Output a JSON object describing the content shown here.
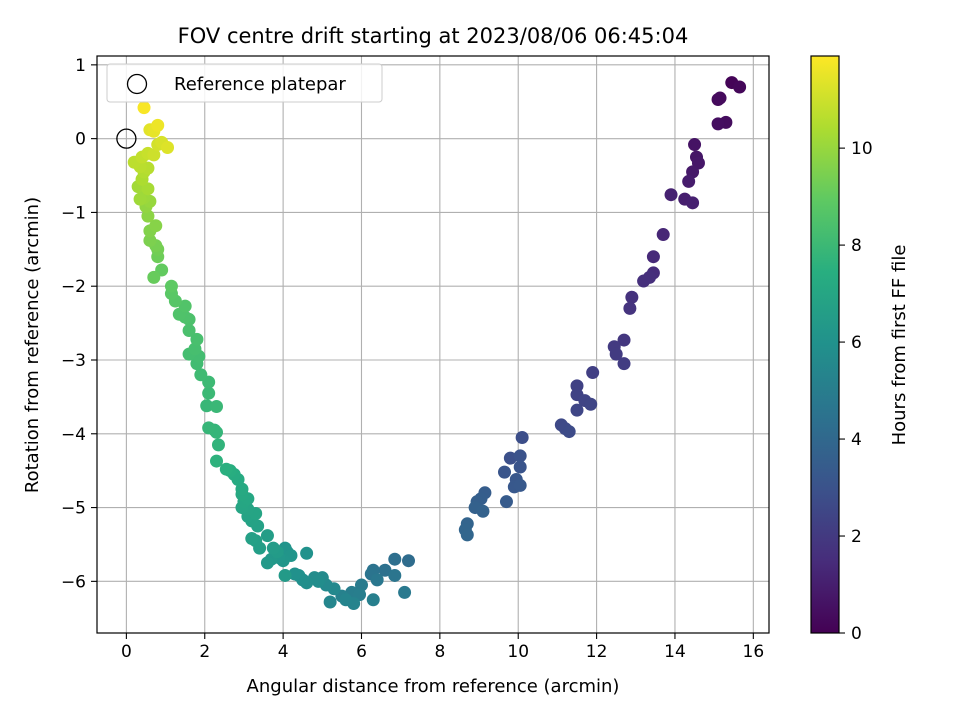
{
  "chart_data": {
    "type": "scatter",
    "title": "FOV centre drift starting at 2023/08/06 06:45:04",
    "xlabel": "Angular distance from reference (arcmin)",
    "ylabel": "Rotation from reference (arcmin)",
    "xlim": [
      -0.75,
      16.4
    ],
    "ylim": [
      -6.7,
      1.12
    ],
    "xticks": [
      0,
      2,
      4,
      6,
      8,
      10,
      12,
      14,
      16
    ],
    "yticks": [
      1,
      0,
      -1,
      -2,
      -3,
      -4,
      -5,
      -6
    ],
    "grid": true,
    "legend": {
      "location": "top-left",
      "entries": [
        "Reference platepar"
      ]
    },
    "reference_point": {
      "x": 0,
      "y": 0
    },
    "colorbar": {
      "label": "Hours from first FF file",
      "colormap": "viridis",
      "range": [
        0,
        11.9
      ],
      "ticks": [
        0,
        2,
        4,
        6,
        8,
        10
      ]
    },
    "points": [
      [
        15.45,
        0.76,
        0.1
      ],
      [
        15.65,
        0.7,
        0.2
      ],
      [
        15.1,
        0.53,
        0.3
      ],
      [
        15.15,
        0.55,
        0.35
      ],
      [
        15.3,
        0.22,
        0.4
      ],
      [
        15.1,
        0.2,
        0.45
      ],
      [
        14.5,
        -0.08,
        0.6
      ],
      [
        14.55,
        -0.25,
        0.7
      ],
      [
        14.6,
        -0.33,
        0.75
      ],
      [
        14.45,
        -0.45,
        0.8
      ],
      [
        14.35,
        -0.58,
        0.9
      ],
      [
        14.25,
        -0.82,
        1.0
      ],
      [
        14.45,
        -0.87,
        1.05
      ],
      [
        13.9,
        -0.76,
        1.1
      ],
      [
        13.7,
        -1.3,
        1.3
      ],
      [
        13.45,
        -1.6,
        1.4
      ],
      [
        13.45,
        -1.82,
        1.5
      ],
      [
        13.35,
        -1.88,
        1.55
      ],
      [
        13.2,
        -1.93,
        1.6
      ],
      [
        12.9,
        -2.15,
        1.7
      ],
      [
        12.85,
        -2.3,
        1.75
      ],
      [
        12.7,
        -2.73,
        1.9
      ],
      [
        12.45,
        -2.82,
        2.0
      ],
      [
        12.5,
        -2.92,
        2.05
      ],
      [
        12.7,
        -3.05,
        2.1
      ],
      [
        11.9,
        -3.17,
        2.2
      ],
      [
        11.5,
        -3.35,
        2.3
      ],
      [
        11.5,
        -3.47,
        2.35
      ],
      [
        11.7,
        -3.55,
        2.4
      ],
      [
        11.85,
        -3.6,
        2.45
      ],
      [
        11.5,
        -3.68,
        2.5
      ],
      [
        11.1,
        -3.88,
        2.6
      ],
      [
        11.2,
        -3.93,
        2.65
      ],
      [
        11.3,
        -3.97,
        2.7
      ],
      [
        10.1,
        -4.05,
        2.8
      ],
      [
        9.8,
        -4.33,
        2.9
      ],
      [
        10.05,
        -4.3,
        3.0
      ],
      [
        10.05,
        -4.45,
        3.05
      ],
      [
        9.65,
        -4.52,
        3.1
      ],
      [
        9.95,
        -4.62,
        3.2
      ],
      [
        9.9,
        -4.72,
        3.25
      ],
      [
        10.05,
        -4.7,
        3.3
      ],
      [
        9.7,
        -4.92,
        3.4
      ],
      [
        9.15,
        -4.8,
        3.5
      ],
      [
        9.05,
        -4.88,
        3.55
      ],
      [
        8.95,
        -4.92,
        3.6
      ],
      [
        8.9,
        -5.0,
        3.65
      ],
      [
        9.1,
        -5.05,
        3.7
      ],
      [
        8.7,
        -5.22,
        3.8
      ],
      [
        8.65,
        -5.3,
        3.85
      ],
      [
        8.7,
        -5.37,
        3.9
      ],
      [
        7.2,
        -5.72,
        4.2
      ],
      [
        6.85,
        -5.7,
        4.3
      ],
      [
        6.6,
        -5.85,
        4.4
      ],
      [
        6.3,
        -5.85,
        4.5
      ],
      [
        6.25,
        -5.9,
        4.55
      ],
      [
        6.85,
        -5.92,
        4.6
      ],
      [
        6.4,
        -5.98,
        4.7
      ],
      [
        7.1,
        -6.15,
        4.8
      ],
      [
        6.0,
        -6.05,
        4.9
      ],
      [
        5.75,
        -6.15,
        5.0
      ],
      [
        5.95,
        -6.18,
        5.05
      ],
      [
        6.3,
        -6.25,
        5.1
      ],
      [
        5.5,
        -6.2,
        5.2
      ],
      [
        5.8,
        -6.3,
        5.3
      ],
      [
        5.6,
        -6.25,
        5.35
      ],
      [
        5.2,
        -6.28,
        5.4
      ],
      [
        5.3,
        -6.1,
        5.5
      ],
      [
        5.1,
        -6.05,
        5.55
      ],
      [
        5.0,
        -5.95,
        5.6
      ],
      [
        4.8,
        -5.95,
        5.7
      ],
      [
        4.9,
        -6.0,
        5.75
      ],
      [
        4.6,
        -6.02,
        5.8
      ],
      [
        4.5,
        -5.98,
        5.85
      ],
      [
        4.4,
        -5.92,
        5.9
      ],
      [
        4.3,
        -5.9,
        5.95
      ],
      [
        4.6,
        -5.62,
        6.0
      ],
      [
        4.1,
        -5.6,
        6.05
      ],
      [
        4.05,
        -5.55,
        6.1
      ],
      [
        4.2,
        -5.65,
        6.15
      ],
      [
        4.0,
        -5.72,
        6.2
      ],
      [
        3.9,
        -5.68,
        6.25
      ],
      [
        3.7,
        -5.7,
        6.3
      ],
      [
        3.6,
        -5.75,
        6.35
      ],
      [
        4.05,
        -5.92,
        6.4
      ],
      [
        3.85,
        -5.6,
        6.45
      ],
      [
        3.75,
        -5.55,
        6.5
      ],
      [
        3.6,
        -5.38,
        6.55
      ],
      [
        3.4,
        -5.55,
        6.6
      ],
      [
        3.3,
        -5.45,
        6.65
      ],
      [
        3.2,
        -5.42,
        6.7
      ],
      [
        3.35,
        -5.25,
        6.75
      ],
      [
        3.2,
        -5.18,
        6.8
      ],
      [
        3.1,
        -5.12,
        6.85
      ],
      [
        3.3,
        -5.08,
        6.9
      ],
      [
        3.1,
        -5.02,
        6.95
      ],
      [
        2.95,
        -5.0,
        7.0
      ],
      [
        3.0,
        -4.92,
        7.05
      ],
      [
        3.1,
        -4.88,
        7.1
      ],
      [
        2.95,
        -4.82,
        7.15
      ],
      [
        2.95,
        -4.75,
        7.2
      ],
      [
        2.85,
        -4.62,
        7.25
      ],
      [
        2.75,
        -4.55,
        7.3
      ],
      [
        2.65,
        -4.5,
        7.4
      ],
      [
        2.55,
        -4.48,
        7.5
      ],
      [
        2.3,
        -4.37,
        7.6
      ],
      [
        2.35,
        -4.15,
        7.7
      ],
      [
        2.25,
        -3.95,
        7.75
      ],
      [
        2.3,
        -3.98,
        7.8
      ],
      [
        2.1,
        -3.92,
        7.85
      ],
      [
        2.05,
        -3.62,
        7.9
      ],
      [
        2.3,
        -3.63,
        7.95
      ],
      [
        2.1,
        -3.45,
        8.0
      ],
      [
        2.1,
        -3.3,
        8.05
      ],
      [
        1.9,
        -3.2,
        8.1
      ],
      [
        1.8,
        -3.05,
        8.15
      ],
      [
        1.85,
        -2.95,
        8.2
      ],
      [
        1.6,
        -2.92,
        8.25
      ],
      [
        1.75,
        -2.85,
        8.3
      ],
      [
        1.8,
        -2.72,
        8.35
      ],
      [
        1.6,
        -2.6,
        8.4
      ],
      [
        1.6,
        -2.45,
        8.45
      ],
      [
        1.5,
        -2.42,
        8.5
      ],
      [
        1.35,
        -2.38,
        8.55
      ],
      [
        1.5,
        -2.27,
        8.6
      ],
      [
        1.25,
        -2.2,
        8.7
      ],
      [
        1.15,
        -2.1,
        8.8
      ],
      [
        1.15,
        -2.0,
        8.9
      ],
      [
        0.9,
        -1.78,
        9.0
      ],
      [
        0.7,
        -1.88,
        9.1
      ],
      [
        0.8,
        -1.6,
        9.2
      ],
      [
        0.8,
        -1.5,
        9.3
      ],
      [
        0.75,
        -1.45,
        9.4
      ],
      [
        0.6,
        -1.38,
        9.5
      ],
      [
        0.6,
        -1.25,
        9.6
      ],
      [
        0.75,
        -1.18,
        9.7
      ],
      [
        0.55,
        -1.05,
        9.8
      ],
      [
        0.5,
        -0.92,
        9.9
      ],
      [
        0.6,
        -0.85,
        10.0
      ],
      [
        0.45,
        -0.8,
        10.1
      ],
      [
        0.35,
        -0.82,
        10.15
      ],
      [
        0.3,
        -0.65,
        10.2
      ],
      [
        0.55,
        -0.68,
        10.3
      ],
      [
        0.4,
        -0.55,
        10.4
      ],
      [
        0.45,
        -0.45,
        10.5
      ],
      [
        0.55,
        -0.4,
        10.6
      ],
      [
        0.35,
        -0.38,
        10.65
      ],
      [
        0.2,
        -0.32,
        10.7
      ],
      [
        0.4,
        -0.25,
        10.8
      ],
      [
        0.55,
        -0.2,
        10.9
      ],
      [
        0.7,
        -0.22,
        11.0
      ],
      [
        0.8,
        -0.08,
        11.1
      ],
      [
        0.9,
        -0.05,
        11.2
      ],
      [
        1.05,
        -0.12,
        11.3
      ],
      [
        0.6,
        0.12,
        11.4
      ],
      [
        0.7,
        0.1,
        11.5
      ],
      [
        0.8,
        0.18,
        11.6
      ],
      [
        0.45,
        0.42,
        11.8
      ]
    ]
  }
}
